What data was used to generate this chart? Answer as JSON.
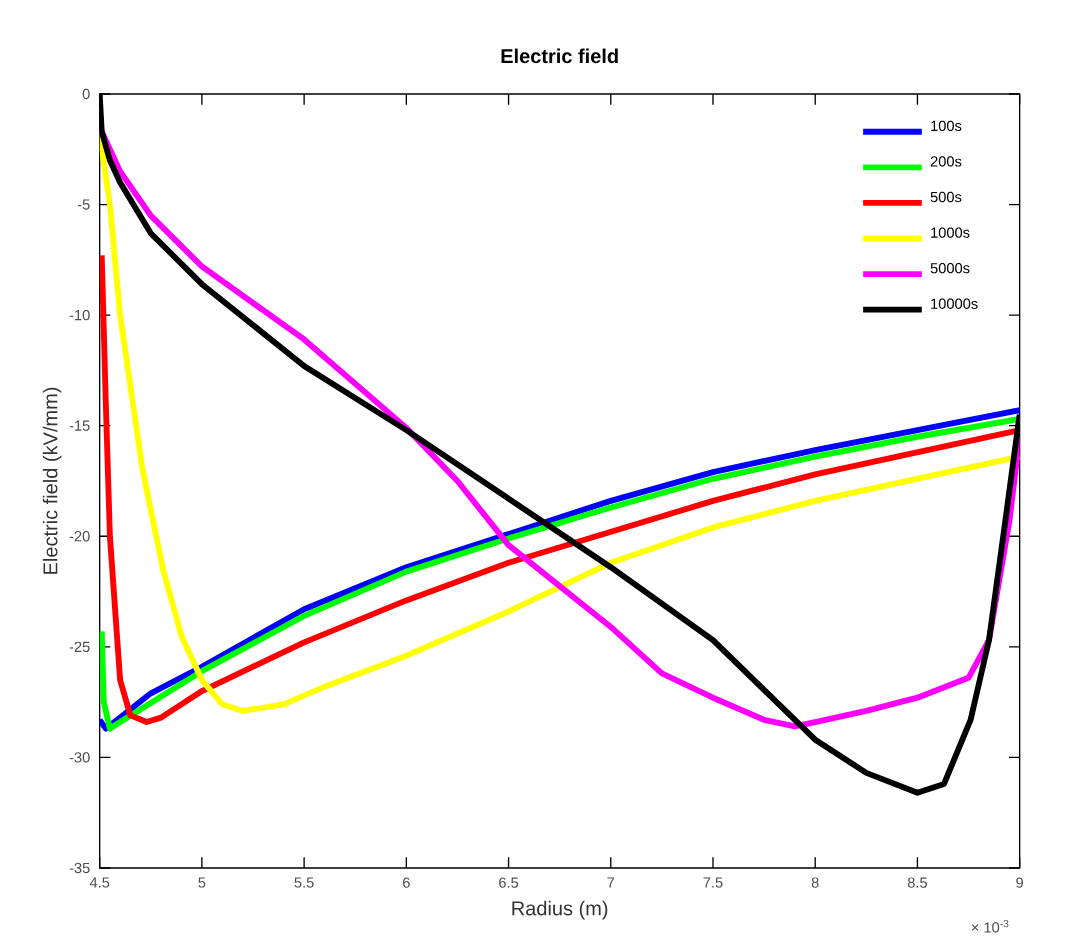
{
  "chart_data": {
    "type": "line",
    "title": "Electric field",
    "xlabel": "Radius (m)",
    "ylabel": "Electric field (kV/mm)",
    "annotations": [
      "× 10$^{-3}$"
    ],
    "xlim": [
      4.5,
      9
    ],
    "ylim": [
      -35,
      0
    ],
    "xticks": [
      4.5,
      5,
      5.5,
      6,
      6.5,
      7,
      7.5,
      8,
      8.5,
      9
    ],
    "yticks": [
      -35,
      -30,
      -25,
      -20,
      -15,
      -10,
      -5,
      0
    ],
    "legend": "top right",
    "grid": false,
    "marker": "none",
    "line_style": "solid",
    "series": [
      {
        "name": "100s",
        "color": "#0000ff",
        "x": [
          4.5,
          4.53,
          4.6,
          4.75,
          5,
          5.5,
          6,
          6.5,
          7,
          7.5,
          8,
          8.5,
          9
        ],
        "values": [
          -28.3,
          -28.7,
          -28.2,
          -27.1,
          -25.9,
          -23.3,
          -21.4,
          -19.9,
          -18.4,
          -17.1,
          -16.1,
          -15.2,
          -14.3
        ]
      },
      {
        "name": "200s",
        "color": "#00ff00",
        "x": [
          4.51,
          4.52,
          4.55,
          4.6,
          5,
          5.5,
          6,
          6.5,
          7,
          7.5,
          8,
          8.5,
          9
        ],
        "values": [
          -24.3,
          -27.5,
          -28.7,
          -28.4,
          -26.1,
          -23.6,
          -21.6,
          -20.1,
          -18.7,
          -17.4,
          -16.4,
          -15.5,
          -14.7
        ]
      },
      {
        "name": "500s",
        "color": "#ff0000",
        "x": [
          4.51,
          4.53,
          4.55,
          4.6,
          4.65,
          4.73,
          4.8,
          5,
          5.5,
          6,
          6.5,
          7,
          7.5,
          8,
          8.5,
          9
        ],
        "values": [
          -7.3,
          -14,
          -20,
          -26.5,
          -28.1,
          -28.4,
          -28.2,
          -27.0,
          -24.8,
          -22.9,
          -21.2,
          -19.8,
          -18.4,
          -17.2,
          -16.2,
          -15.2
        ]
      },
      {
        "name": "1000s",
        "color": "#ffff00",
        "x": [
          4.5,
          4.55,
          4.6,
          4.71,
          4.81,
          4.9,
          5,
          5.1,
          5.2,
          5.4,
          5.6,
          6,
          6.5,
          7,
          7.5,
          8,
          8.5,
          9
        ],
        "values": [
          -1.8,
          -5,
          -10,
          -17,
          -21.5,
          -24.5,
          -26.5,
          -27.6,
          -27.9,
          -27.6,
          -26.8,
          -25.4,
          -23.4,
          -21.2,
          -19.6,
          -18.4,
          -17.4,
          -16.4
        ]
      },
      {
        "name": "5000s",
        "color": "#ff00ff",
        "x": [
          4.5,
          4.6,
          4.75,
          5,
          5.5,
          6,
          6.25,
          6.5,
          7,
          7.25,
          7.5,
          7.75,
          7.9,
          8,
          8.25,
          8.5,
          8.75,
          8.85,
          8.95,
          9
        ],
        "values": [
          -1.5,
          -3.5,
          -5.5,
          -7.8,
          -11.1,
          -15.1,
          -17.5,
          -20.4,
          -24.1,
          -26.2,
          -27.3,
          -28.3,
          -28.6,
          -28.4,
          -27.9,
          -27.3,
          -26.4,
          -24.7,
          -19.3,
          -15.5
        ]
      },
      {
        "name": "10000s",
        "color": "#000000",
        "x": [
          4.5,
          4.51,
          4.55,
          4.6,
          4.75,
          5,
          5.5,
          6,
          6.5,
          7,
          7.5,
          8,
          8.25,
          8.5,
          8.63,
          8.76,
          8.85,
          8.93,
          9
        ],
        "values": [
          0,
          -1.7,
          -3,
          -4,
          -6.3,
          -8.6,
          -12.3,
          -15.2,
          -18.3,
          -21.4,
          -24.7,
          -29.2,
          -30.7,
          -31.6,
          -31.2,
          -28.3,
          -24.7,
          -19.3,
          -14.5
        ]
      }
    ]
  }
}
